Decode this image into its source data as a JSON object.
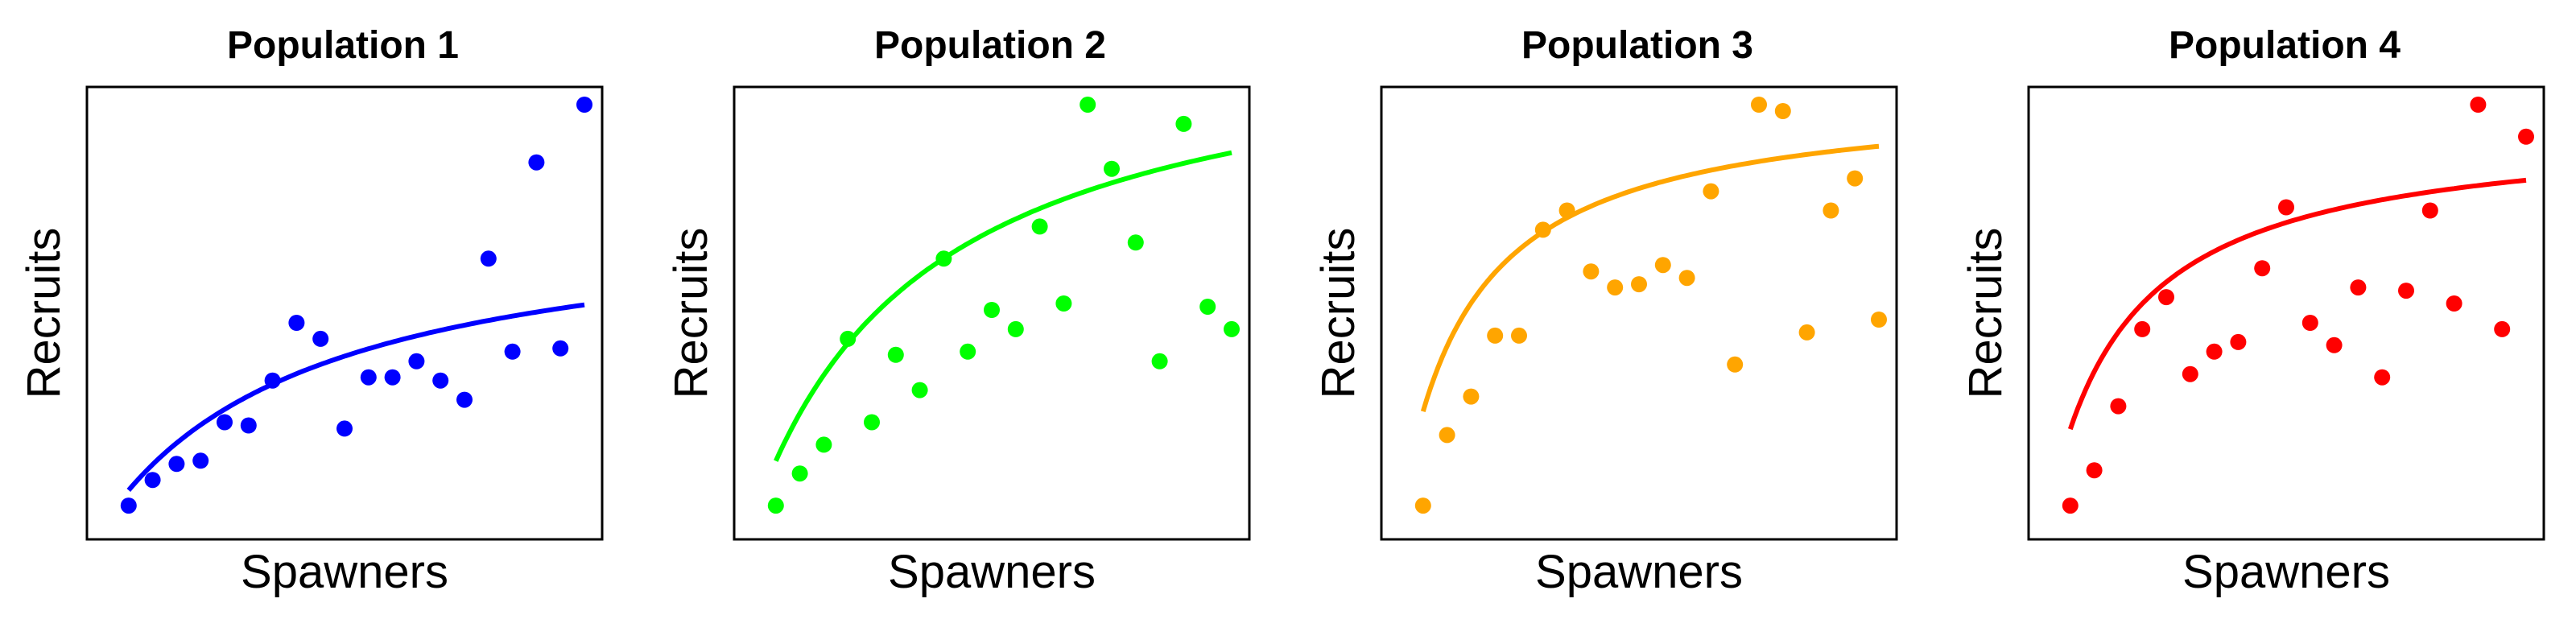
{
  "chart_data": [
    {
      "type": "scatter",
      "title": "Population 1",
      "xlabel": "Spawners",
      "ylabel": "Recruits",
      "xlim": [
        0,
        20
      ],
      "ylim": [
        0,
        13
      ],
      "color": "#0000ff",
      "points": {
        "x": [
          1,
          2,
          3,
          4,
          5,
          6,
          7,
          8,
          9,
          10,
          11,
          12,
          13,
          14,
          15,
          16,
          17,
          18,
          19,
          20
        ],
        "y": [
          0.5,
          1.3,
          1.8,
          1.9,
          3.1,
          3.0,
          4.4,
          6.2,
          5.7,
          2.9,
          4.5,
          4.5,
          5.0,
          4.4,
          3.8,
          8.2,
          5.3,
          11.2,
          5.4,
          13.0
        ]
      },
      "fit": {
        "model": "saturating",
        "a": 9.8,
        "b": 9.0
      }
    },
    {
      "type": "scatter",
      "title": "Population 2",
      "xlabel": "Spawners",
      "ylabel": "Recruits",
      "xlim": [
        0,
        20
      ],
      "ylim": [
        0,
        13
      ],
      "color": "#00ff00",
      "points": {
        "x": [
          1,
          2,
          3,
          4,
          5,
          6,
          7,
          8,
          9,
          10,
          11,
          12,
          13,
          14,
          15,
          16,
          17,
          18,
          19,
          20
        ],
        "y": [
          0.5,
          1.5,
          2.4,
          5.7,
          3.1,
          5.2,
          4.1,
          8.2,
          5.3,
          6.6,
          6.0,
          9.2,
          6.8,
          13.0,
          11.0,
          8.7,
          5.0,
          12.4,
          6.7,
          6.0
        ]
      },
      "fit": {
        "model": "saturating",
        "a": 15.7,
        "b": 7.3
      }
    },
    {
      "type": "scatter",
      "title": "Population 3",
      "xlabel": "Spawners",
      "ylabel": "Recruits",
      "xlim": [
        0,
        20
      ],
      "ylim": [
        0,
        13
      ],
      "color": "#ffa500",
      "points": {
        "x": [
          1,
          2,
          3,
          4,
          5,
          6,
          7,
          8,
          9,
          10,
          11,
          12,
          13,
          14,
          15,
          16,
          17,
          18,
          19,
          20
        ],
        "y": [
          0.5,
          2.7,
          3.9,
          5.8,
          5.8,
          9.1,
          9.7,
          7.8,
          7.3,
          7.4,
          8.0,
          7.6,
          10.3,
          4.9,
          13.0,
          12.8,
          5.9,
          9.7,
          10.7,
          6.3
        ]
      },
      "fit": {
        "model": "saturating",
        "a": 13.4,
        "b": 2.9
      }
    },
    {
      "type": "scatter",
      "title": "Population 4",
      "xlabel": "Spawners",
      "ylabel": "Recruits",
      "xlim": [
        0,
        20
      ],
      "ylim": [
        0,
        13
      ],
      "color": "#ff0000",
      "points": {
        "x": [
          1,
          2,
          3,
          4,
          5,
          6,
          7,
          8,
          9,
          10,
          11,
          12,
          13,
          14,
          15,
          16,
          17,
          18,
          19,
          20
        ],
        "y": [
          0.5,
          1.6,
          3.6,
          6.0,
          7.0,
          4.6,
          5.3,
          5.6,
          7.9,
          9.8,
          6.2,
          5.5,
          7.3,
          4.5,
          7.2,
          9.7,
          6.8,
          13.0,
          6.0,
          12.0
        ]
      },
      "fit": {
        "model": "saturating",
        "a": 12.4,
        "b": 3.3
      }
    }
  ]
}
